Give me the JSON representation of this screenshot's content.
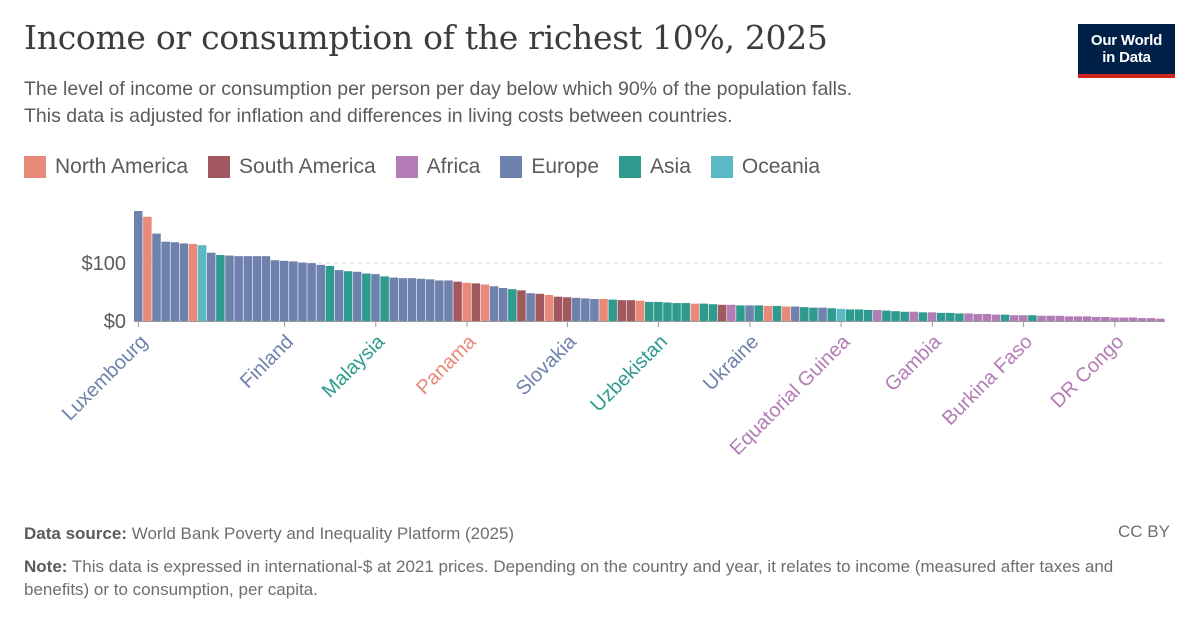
{
  "header": {
    "title": "Income or consumption of the richest 10%, 2025",
    "subtitle_line1": "The level of income or consumption per person per day below which 90% of the population falls.",
    "subtitle_line2": "This data is adjusted for inflation and differences in living costs between countries.",
    "logo_line1": "Our World",
    "logo_line2": "in Data"
  },
  "colors": {
    "North America": "#e8897a",
    "South America": "#a2585f",
    "Africa": "#b47cb6",
    "Europe": "#6f82ad",
    "Asia": "#2f9b8e",
    "Oceania": "#5bb9c6"
  },
  "chart_data": {
    "type": "bar",
    "title": "Income or consumption of the richest 10%, 2025",
    "ylabel": "",
    "xlabel": "",
    "ylim": [
      0,
      190
    ],
    "y_ticks": [
      {
        "value": 0,
        "label": "$0"
      },
      {
        "value": 100,
        "label": "$100"
      }
    ],
    "grid": "horizontal-dashed",
    "legend_position": "top-left",
    "legend": [
      "North America",
      "South America",
      "Africa",
      "Europe",
      "Asia",
      "Oceania"
    ],
    "x_labels": [
      {
        "index": 0,
        "label": "Luxembourg",
        "region": "Europe"
      },
      {
        "index": 16,
        "label": "Finland",
        "region": "Europe"
      },
      {
        "index": 26,
        "label": "Malaysia",
        "region": "Asia"
      },
      {
        "index": 36,
        "label": "Panama",
        "region": "North America"
      },
      {
        "index": 47,
        "label": "Slovakia",
        "region": "Europe"
      },
      {
        "index": 57,
        "label": "Uzbekistan",
        "region": "Asia"
      },
      {
        "index": 67,
        "label": "Ukraine",
        "region": "Europe"
      },
      {
        "index": 77,
        "label": "Equatorial Guinea",
        "region": "Africa"
      },
      {
        "index": 87,
        "label": "Gambia",
        "region": "Africa"
      },
      {
        "index": 97,
        "label": "Burkina Faso",
        "region": "Africa"
      },
      {
        "index": 107,
        "label": "DR Congo",
        "region": "Africa"
      }
    ],
    "bars": [
      {
        "value": 190,
        "region": "Europe"
      },
      {
        "value": 180,
        "region": "North America"
      },
      {
        "value": 151,
        "region": "Europe"
      },
      {
        "value": 137,
        "region": "Europe"
      },
      {
        "value": 136,
        "region": "Europe"
      },
      {
        "value": 134,
        "region": "Europe"
      },
      {
        "value": 133,
        "region": "North America"
      },
      {
        "value": 131,
        "region": "Oceania"
      },
      {
        "value": 118,
        "region": "Europe"
      },
      {
        "value": 114,
        "region": "Asia"
      },
      {
        "value": 113,
        "region": "Europe"
      },
      {
        "value": 112,
        "region": "Europe"
      },
      {
        "value": 112,
        "region": "Europe"
      },
      {
        "value": 112,
        "region": "Europe"
      },
      {
        "value": 112,
        "region": "Europe"
      },
      {
        "value": 105,
        "region": "Europe"
      },
      {
        "value": 104,
        "region": "Europe"
      },
      {
        "value": 103,
        "region": "Europe"
      },
      {
        "value": 101,
        "region": "Europe"
      },
      {
        "value": 100,
        "region": "Europe"
      },
      {
        "value": 97,
        "region": "Europe"
      },
      {
        "value": 95,
        "region": "Asia"
      },
      {
        "value": 88,
        "region": "Europe"
      },
      {
        "value": 86,
        "region": "Asia"
      },
      {
        "value": 85,
        "region": "Europe"
      },
      {
        "value": 82,
        "region": "Asia"
      },
      {
        "value": 81,
        "region": "Europe"
      },
      {
        "value": 77,
        "region": "Asia"
      },
      {
        "value": 75,
        "region": "Europe"
      },
      {
        "value": 74,
        "region": "Europe"
      },
      {
        "value": 74,
        "region": "Europe"
      },
      {
        "value": 73,
        "region": "Europe"
      },
      {
        "value": 72,
        "region": "Europe"
      },
      {
        "value": 70,
        "region": "Europe"
      },
      {
        "value": 70,
        "region": "Europe"
      },
      {
        "value": 68,
        "region": "South America"
      },
      {
        "value": 66,
        "region": "North America"
      },
      {
        "value": 65,
        "region": "South America"
      },
      {
        "value": 63,
        "region": "North America"
      },
      {
        "value": 60,
        "region": "Europe"
      },
      {
        "value": 57,
        "region": "Europe"
      },
      {
        "value": 55,
        "region": "Asia"
      },
      {
        "value": 53,
        "region": "South America"
      },
      {
        "value": 48,
        "region": "Europe"
      },
      {
        "value": 47,
        "region": "South America"
      },
      {
        "value": 45,
        "region": "North America"
      },
      {
        "value": 42,
        "region": "South America"
      },
      {
        "value": 41,
        "region": "South America"
      },
      {
        "value": 40,
        "region": "Europe"
      },
      {
        "value": 39,
        "region": "Europe"
      },
      {
        "value": 38,
        "region": "Europe"
      },
      {
        "value": 38,
        "region": "North America"
      },
      {
        "value": 37,
        "region": "Asia"
      },
      {
        "value": 36,
        "region": "South America"
      },
      {
        "value": 36,
        "region": "South America"
      },
      {
        "value": 35,
        "region": "North America"
      },
      {
        "value": 33,
        "region": "Asia"
      },
      {
        "value": 33,
        "region": "Asia"
      },
      {
        "value": 32,
        "region": "Asia"
      },
      {
        "value": 31,
        "region": "Asia"
      },
      {
        "value": 31,
        "region": "Asia"
      },
      {
        "value": 30,
        "region": "North America"
      },
      {
        "value": 30,
        "region": "Asia"
      },
      {
        "value": 29,
        "region": "Asia"
      },
      {
        "value": 28,
        "region": "South America"
      },
      {
        "value": 28,
        "region": "Africa"
      },
      {
        "value": 27,
        "region": "Asia"
      },
      {
        "value": 27,
        "region": "Europe"
      },
      {
        "value": 27,
        "region": "Asia"
      },
      {
        "value": 26,
        "region": "North America"
      },
      {
        "value": 26,
        "region": "Asia"
      },
      {
        "value": 25,
        "region": "North America"
      },
      {
        "value": 25,
        "region": "Europe"
      },
      {
        "value": 24,
        "region": "Asia"
      },
      {
        "value": 23,
        "region": "Asia"
      },
      {
        "value": 23,
        "region": "Europe"
      },
      {
        "value": 22,
        "region": "Asia"
      },
      {
        "value": 21,
        "region": "Oceania"
      },
      {
        "value": 20,
        "region": "Asia"
      },
      {
        "value": 20,
        "region": "Asia"
      },
      {
        "value": 19,
        "region": "Asia"
      },
      {
        "value": 19,
        "region": "Africa"
      },
      {
        "value": 18,
        "region": "Asia"
      },
      {
        "value": 17,
        "region": "Asia"
      },
      {
        "value": 16,
        "region": "Asia"
      },
      {
        "value": 16,
        "region": "Africa"
      },
      {
        "value": 15,
        "region": "Asia"
      },
      {
        "value": 15,
        "region": "Africa"
      },
      {
        "value": 14,
        "region": "Asia"
      },
      {
        "value": 14,
        "region": "Asia"
      },
      {
        "value": 13,
        "region": "Asia"
      },
      {
        "value": 13,
        "region": "Africa"
      },
      {
        "value": 12,
        "region": "Africa"
      },
      {
        "value": 12,
        "region": "Africa"
      },
      {
        "value": 11,
        "region": "Africa"
      },
      {
        "value": 11,
        "region": "Asia"
      },
      {
        "value": 10,
        "region": "Africa"
      },
      {
        "value": 10,
        "region": "Africa"
      },
      {
        "value": 10,
        "region": "Asia"
      },
      {
        "value": 9,
        "region": "Africa"
      },
      {
        "value": 9,
        "region": "Africa"
      },
      {
        "value": 9,
        "region": "Africa"
      },
      {
        "value": 8,
        "region": "Africa"
      },
      {
        "value": 8,
        "region": "Africa"
      },
      {
        "value": 8,
        "region": "Africa"
      },
      {
        "value": 7,
        "region": "Africa"
      },
      {
        "value": 7,
        "region": "Africa"
      },
      {
        "value": 6,
        "region": "Africa"
      },
      {
        "value": 6,
        "region": "Africa"
      },
      {
        "value": 6,
        "region": "Africa"
      },
      {
        "value": 5,
        "region": "Africa"
      },
      {
        "value": 5,
        "region": "Africa"
      },
      {
        "value": 4,
        "region": "Africa"
      }
    ]
  },
  "footer": {
    "source_label": "Data source:",
    "source_text": "World Bank Poverty and Inequality Platform (2025)",
    "license": "CC BY",
    "note_label": "Note:",
    "note_text": "This data is expressed in international-$ at 2021 prices. Depending on the country and year, it relates to income (measured after taxes and benefits) or to consumption, per capita."
  }
}
